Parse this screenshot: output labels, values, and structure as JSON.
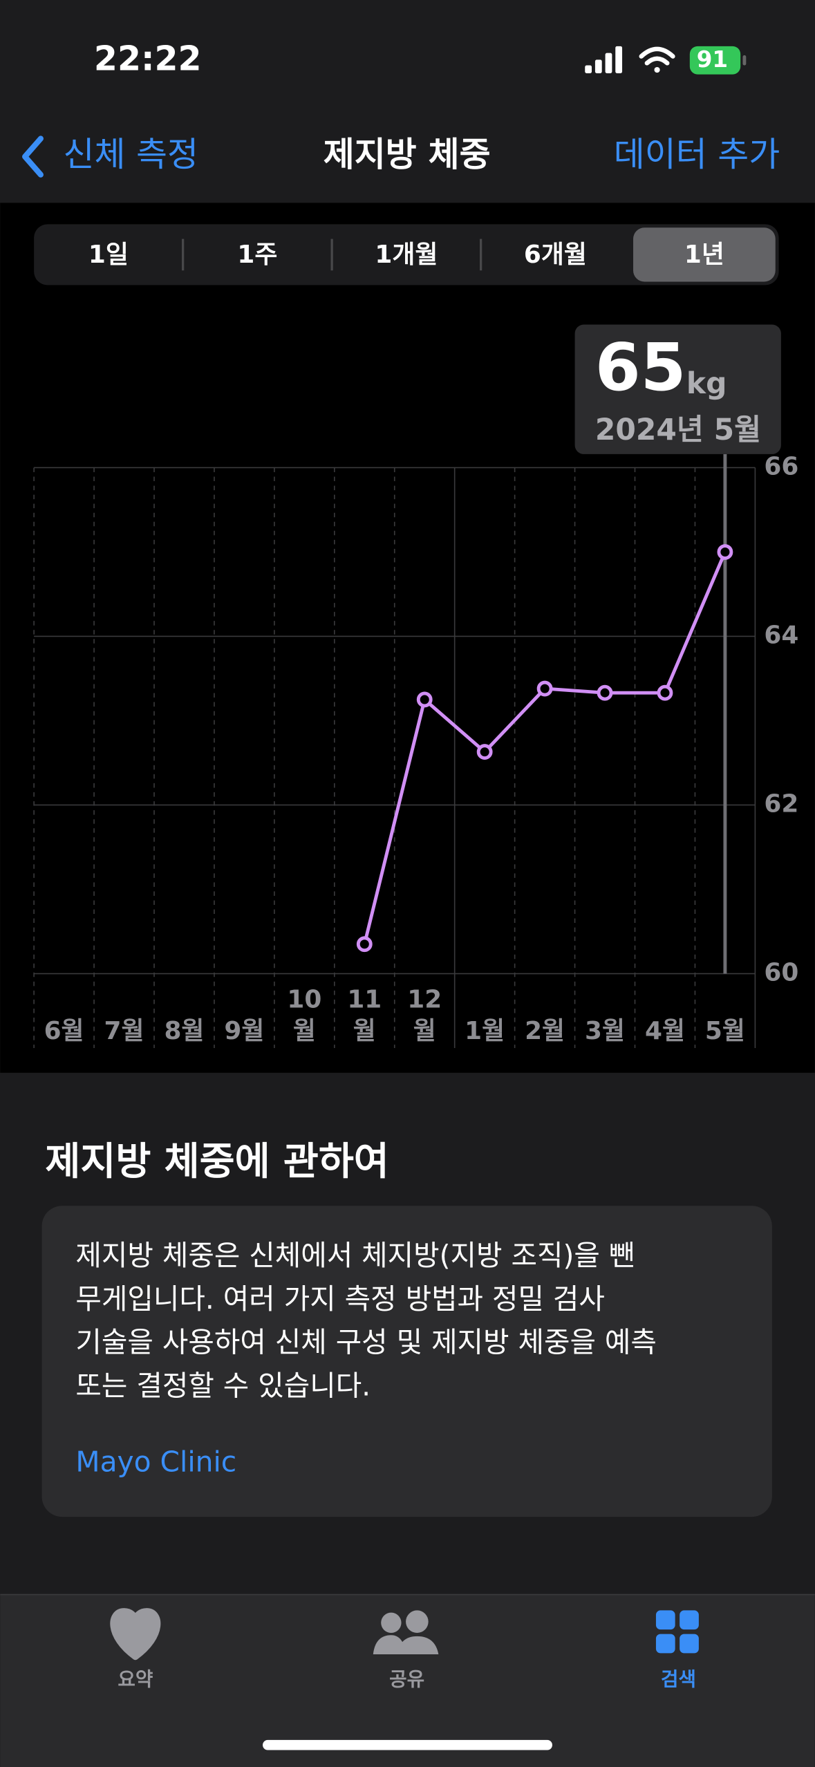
{
  "status_bar": {
    "time": "22:22",
    "battery": "91"
  },
  "nav": {
    "back": "신체 측정",
    "title": "제지방 체중",
    "action": "데이터 추가"
  },
  "segments": [
    "1일",
    "1주",
    "1개월",
    "6개월",
    "1년"
  ],
  "selected_segment": 4,
  "selection": {
    "value": "65",
    "unit": "kg",
    "date": "2024년 5월"
  },
  "chart_data": {
    "type": "line",
    "categories": [
      "6월",
      "7월",
      "8월",
      "9월",
      "10월",
      "11월",
      "12월",
      "1월",
      "2월",
      "3월",
      "4월",
      "5월"
    ],
    "series": [
      {
        "color": "#d18ff5",
        "values": [
          null,
          null,
          null,
          null,
          null,
          60.35,
          63.25,
          62.63,
          63.38,
          63.33,
          63.33,
          65.0
        ]
      }
    ],
    "ylim": [
      60,
      66
    ],
    "yticks": [
      60,
      62,
      64,
      66
    ],
    "grid": true,
    "selected_index": 11
  },
  "about": {
    "title": "제지방 체중에 관하여",
    "lines": [
      "제지방 체중은 신체에서 체지방(지방 조직)을 뺀",
      "무게입니다. 여러 가지 측정 방법과 정밀 검사",
      "기술을 사용하여 신체 구성 및 제지방 체중을 예측",
      "또는 결정할 수 있습니다."
    ],
    "source": "Mayo Clinic"
  },
  "tabs": [
    "요약",
    "공유",
    "검색"
  ],
  "selected_tab": 2
}
